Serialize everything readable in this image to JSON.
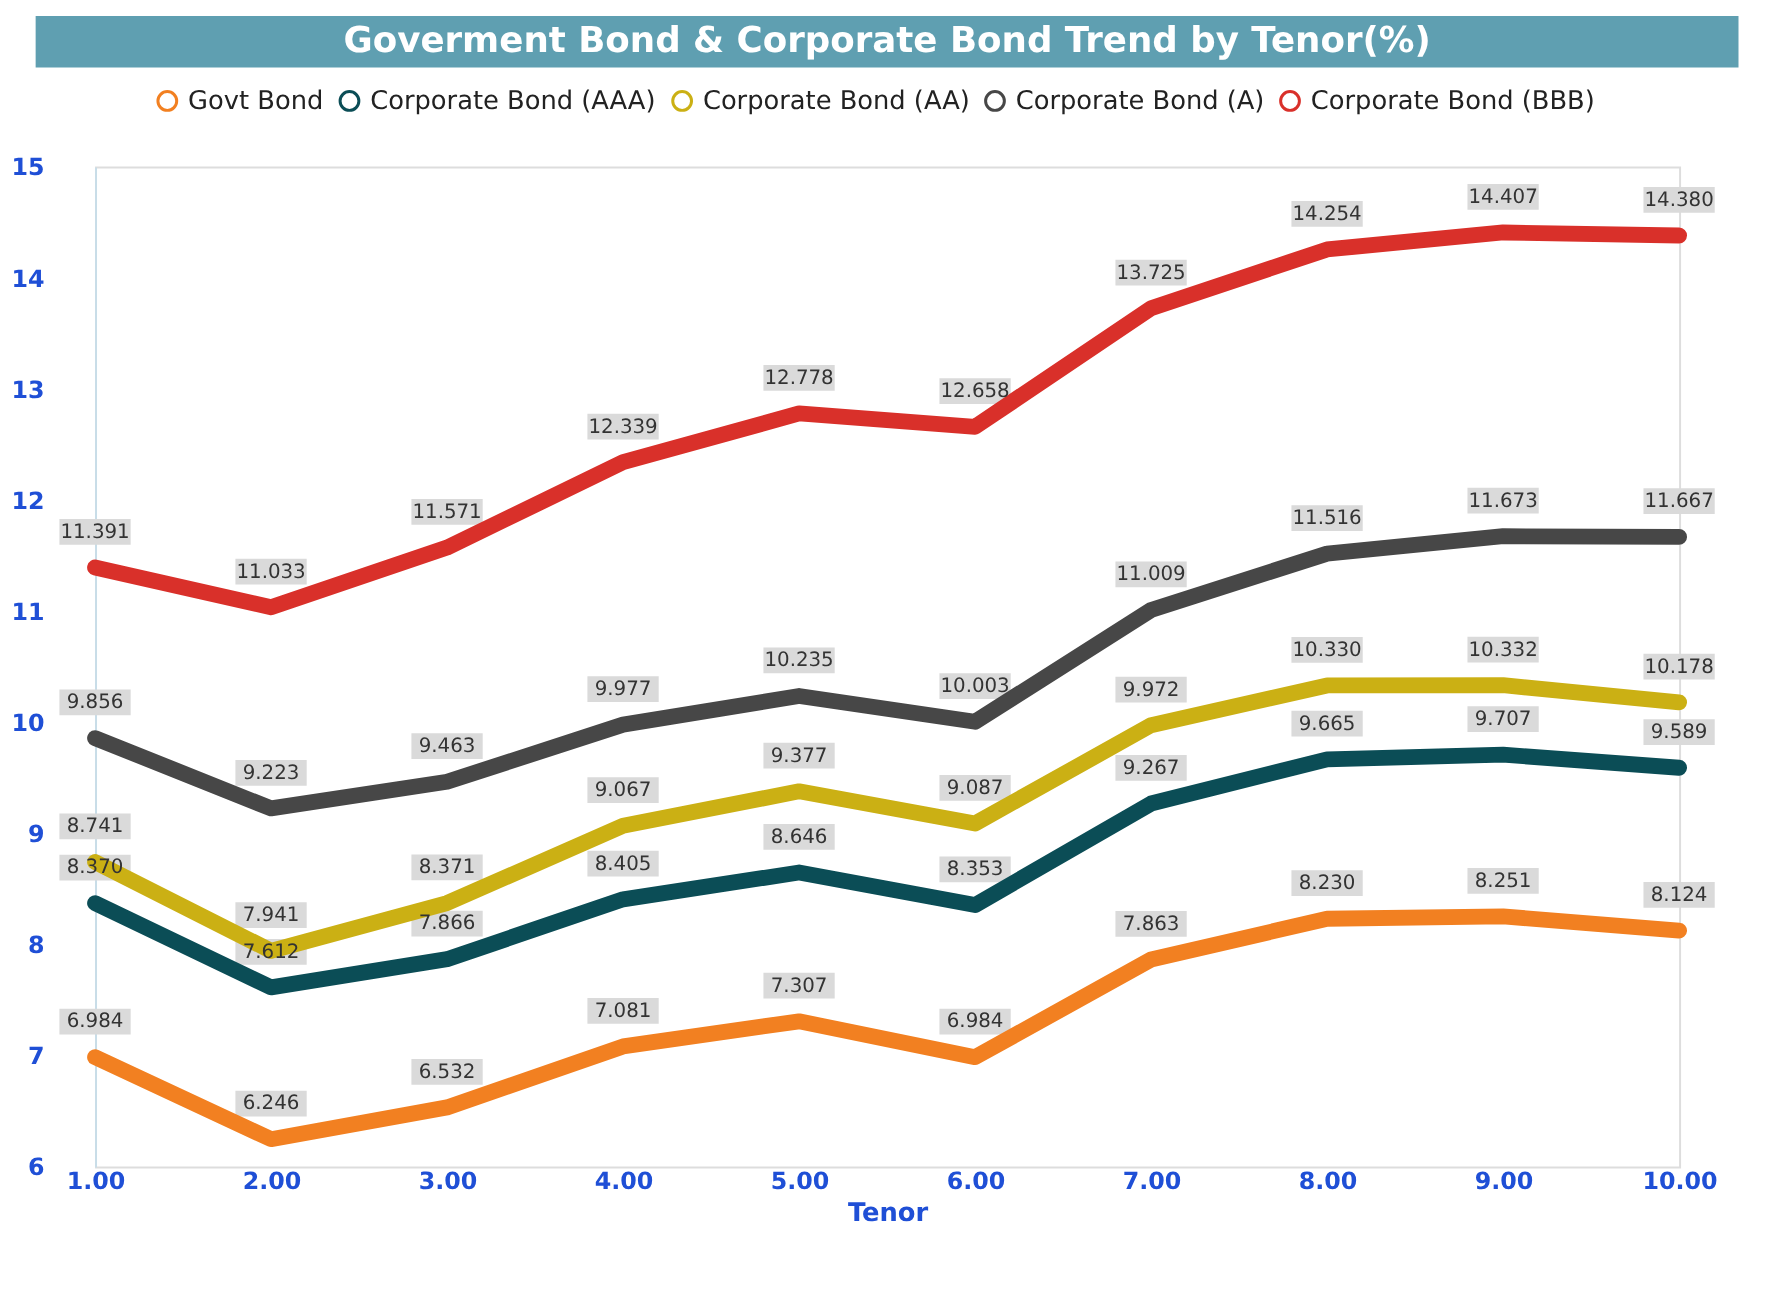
{
  "chart_data": {
    "type": "line",
    "title": "Goverment Bond & Corporate Bond Trend by Tenor(%)",
    "xlabel": "Tenor",
    "x": [
      1,
      2,
      3,
      4,
      5,
      6,
      7,
      8,
      9,
      10
    ],
    "xlim": [
      1,
      10
    ],
    "xticks": [
      {
        "value": 1,
        "label": "1.00"
      },
      {
        "value": 2,
        "label": "2.00"
      },
      {
        "value": 3,
        "label": "3.00"
      },
      {
        "value": 4,
        "label": "4.00"
      },
      {
        "value": 5,
        "label": "5.00"
      },
      {
        "value": 6,
        "label": "6.00"
      },
      {
        "value": 7,
        "label": "7.00"
      },
      {
        "value": 8,
        "label": "8.00"
      },
      {
        "value": 9,
        "label": "9.00"
      },
      {
        "value": 10,
        "label": "10.00"
      }
    ],
    "ylim": [
      6,
      15
    ],
    "yticks": [
      6,
      7,
      8,
      9,
      10,
      11,
      12,
      13,
      14,
      15
    ],
    "series": [
      {
        "name": "Govt Bond",
        "color": "#f28021",
        "values": [
          6.984,
          6.246,
          6.532,
          7.081,
          7.307,
          6.984,
          7.863,
          8.23,
          8.251,
          8.124
        ],
        "value_labels": [
          "6.984",
          "6.246",
          "6.532",
          "7.081",
          "7.307",
          "6.984",
          "7.863",
          "8.230",
          "8.251",
          "8.124"
        ]
      },
      {
        "name": "Corporate Bond (AAA)",
        "color": "#0b4d56",
        "values": [
          8.37,
          7.612,
          7.866,
          8.405,
          8.646,
          8.353,
          9.267,
          9.665,
          9.707,
          9.589
        ],
        "value_labels": [
          "8.370",
          "7.612",
          "7.866",
          "8.405",
          "8.646",
          "8.353",
          "9.267",
          "9.665",
          "9.707",
          "9.589"
        ]
      },
      {
        "name": "Corporate Bond (AA)",
        "color": "#cbb014",
        "values": [
          8.741,
          7.941,
          8.371,
          9.067,
          9.377,
          9.087,
          9.972,
          10.33,
          10.332,
          10.178
        ],
        "value_labels": [
          "8.741",
          "7.941",
          "8.371",
          "9.067",
          "9.377",
          "9.087",
          "9.972",
          "10.330",
          "10.332",
          "10.178"
        ]
      },
      {
        "name": "Corporate Bond (A)",
        "color": "#474747",
        "values": [
          9.856,
          9.223,
          9.463,
          9.977,
          10.235,
          10.003,
          11.009,
          11.516,
          11.673,
          11.667
        ],
        "value_labels": [
          "9.856",
          "9.223",
          "9.463",
          "9.977",
          "10.235",
          "10.003",
          "11.009",
          "11.516",
          "11.673",
          "11.667"
        ]
      },
      {
        "name": "Corporate Bond (BBB)",
        "color": "#d9302a",
        "values": [
          11.391,
          11.033,
          11.571,
          12.339,
          12.778,
          12.658,
          13.725,
          14.254,
          14.407,
          14.38
        ],
        "value_labels": [
          "11.391",
          "11.033",
          "11.571",
          "12.339",
          "12.778",
          "12.658",
          "13.725",
          "14.254",
          "14.407",
          "14.380"
        ]
      }
    ],
    "data_labels": true,
    "grid": false,
    "legend": "top",
    "marker": "none",
    "line_style": "solid"
  }
}
